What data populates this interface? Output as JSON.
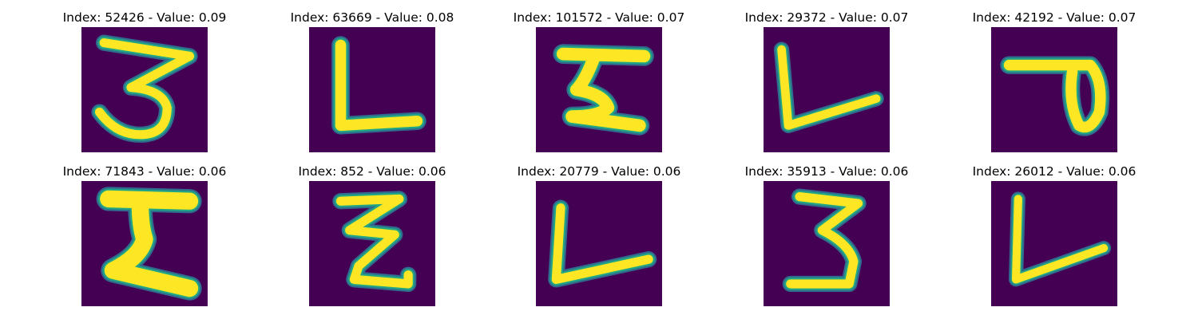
{
  "colors": {
    "background": "#440154",
    "edge_low": "#2f6c8e",
    "edge_mid": "#21a585",
    "foreground": "#fde725"
  },
  "panels": [
    {
      "index": "52426",
      "value": "0.09",
      "title": "Index: 52426 - Value: 0.09",
      "glyph": "digit-three"
    },
    {
      "index": "63669",
      "value": "0.08",
      "title": "Index: 63669 - Value: 0.08",
      "glyph": "letter-l"
    },
    {
      "index": "101572",
      "value": "0.07",
      "title": "Index: 101572 - Value: 0.07",
      "glyph": "letter-i-serif"
    },
    {
      "index": "29372",
      "value": "0.07",
      "title": "Index: 29372 - Value: 0.07",
      "glyph": "letter-l-slanted"
    },
    {
      "index": "42192",
      "value": "0.07",
      "title": "Index: 42192 - Value: 0.07",
      "glyph": "looped-stroke"
    },
    {
      "index": "71843",
      "value": "0.06",
      "title": "Index: 71843 - Value: 0.06",
      "glyph": "letter-i-bold"
    },
    {
      "index": "852",
      "value": "0.06",
      "title": "Index: 852 - Value: 0.06",
      "glyph": "zigzag-z"
    },
    {
      "index": "20779",
      "value": "0.06",
      "title": "Index: 20779 - Value: 0.06",
      "glyph": "letter-l-slanted"
    },
    {
      "index": "35913",
      "value": "0.06",
      "title": "Index: 35913 - Value: 0.06",
      "glyph": "digit-three"
    },
    {
      "index": "26012",
      "value": "0.06",
      "title": "Index: 26012 - Value: 0.06",
      "glyph": "letter-l-slanted"
    }
  ]
}
